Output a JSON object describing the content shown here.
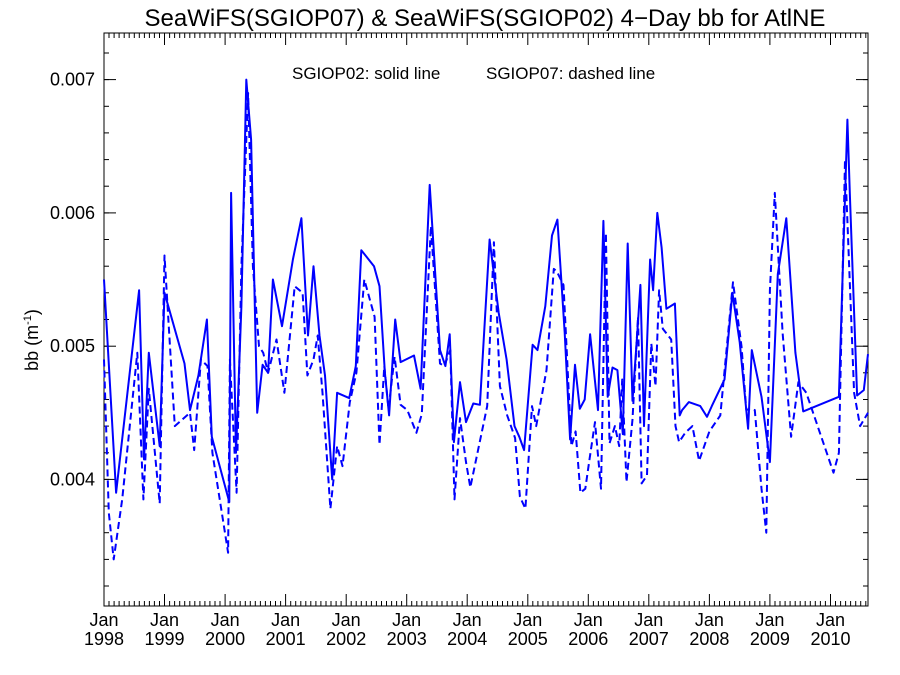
{
  "chart_data": {
    "type": "line",
    "title": "SeaWiFS(SGIOP07) & SeaWiFS(SGIOP02) 4−Day bb for AtlNE",
    "annotation_solid": "SGIOP02: solid line",
    "annotation_dashed": "SGIOP07: dashed line",
    "ylabel_main": "bb (m",
    "ylabel_sup": "-1",
    "ylabel_close": ")",
    "ylim": [
      0.00305,
      0.00735
    ],
    "yticks": [
      {
        "value": 0.004,
        "label": "0.004"
      },
      {
        "value": 0.005,
        "label": "0.005"
      },
      {
        "value": 0.006,
        "label": "0.006"
      },
      {
        "value": 0.007,
        "label": "0.007"
      }
    ],
    "xlim": [
      1998.0,
      2010.62
    ],
    "xticks": [
      {
        "value": 1998,
        "month": "Jan",
        "year": "1998"
      },
      {
        "value": 1999,
        "month": "Jan",
        "year": "1999"
      },
      {
        "value": 2000,
        "month": "Jan",
        "year": "2000"
      },
      {
        "value": 2001,
        "month": "Jan",
        "year": "2001"
      },
      {
        "value": 2002,
        "month": "Jan",
        "year": "2002"
      },
      {
        "value": 2003,
        "month": "Jan",
        "year": "2003"
      },
      {
        "value": 2004,
        "month": "Jan",
        "year": "2004"
      },
      {
        "value": 2005,
        "month": "Jan",
        "year": "2005"
      },
      {
        "value": 2006,
        "month": "Jan",
        "year": "2006"
      },
      {
        "value": 2007,
        "month": "Jan",
        "year": "2007"
      },
      {
        "value": 2008,
        "month": "Jan",
        "year": "2008"
      },
      {
        "value": 2009,
        "month": "Jan",
        "year": "2009"
      },
      {
        "value": 2010,
        "month": "Jan",
        "year": "2010"
      }
    ],
    "series": [
      {
        "style": "solid",
        "color": "#0000ff",
        "x": [
          1998.0,
          1998.2,
          1998.58,
          1998.66,
          1998.74,
          1998.92,
          1999.0,
          1999.33,
          1999.42,
          1999.56,
          1999.7,
          1999.78,
          2000.07,
          2000.1,
          2000.18,
          2000.27,
          2000.35,
          2000.43,
          2000.53,
          2000.62,
          2000.71,
          2000.79,
          2000.94,
          2001.12,
          2001.26,
          2001.37,
          2001.46,
          2001.56,
          2001.65,
          2001.77,
          2001.85,
          2002.05,
          2002.16,
          2002.25,
          2002.46,
          2002.55,
          2002.64,
          2002.71,
          2002.81,
          2002.9,
          2003.12,
          2003.23,
          2003.38,
          2003.55,
          2003.64,
          2003.71,
          2003.78,
          2003.88,
          2003.98,
          2004.1,
          2004.21,
          2004.37,
          2004.52,
          2004.65,
          2004.78,
          2004.86,
          2004.94,
          2005.08,
          2005.16,
          2005.29,
          2005.4,
          2005.49,
          2005.61,
          2005.7,
          2005.78,
          2005.86,
          2005.94,
          2006.03,
          2006.16,
          2006.25,
          2006.32,
          2006.4,
          2006.48,
          2006.57,
          2006.65,
          2006.73,
          2006.81,
          2006.86,
          2006.92,
          2007.02,
          2007.07,
          2007.14,
          2007.21,
          2007.29,
          2007.43,
          2007.51,
          2007.55,
          2007.66,
          2007.85,
          2007.96,
          2008.04,
          2008.25,
          2008.38,
          2008.5,
          2008.64,
          2008.7,
          2008.86,
          2009.0,
          2009.13,
          2009.27,
          2009.42,
          2009.55,
          2010.14,
          2010.28,
          2010.32,
          2010.44,
          2010.55,
          2010.62
        ],
        "y": [
          0.0055,
          0.0039,
          0.00542,
          0.00415,
          0.00495,
          0.00425,
          0.0054,
          0.00487,
          0.00452,
          0.00478,
          0.0052,
          0.00432,
          0.00383,
          0.00615,
          0.0042,
          0.0053,
          0.007,
          0.00655,
          0.0045,
          0.00486,
          0.0048,
          0.0055,
          0.00515,
          0.00565,
          0.00596,
          0.00508,
          0.0056,
          0.00508,
          0.00478,
          0.004,
          0.00465,
          0.00461,
          0.00485,
          0.00572,
          0.0056,
          0.00545,
          0.0048,
          0.00448,
          0.0052,
          0.00488,
          0.00493,
          0.00468,
          0.00621,
          0.00497,
          0.00485,
          0.00509,
          0.00428,
          0.00473,
          0.00443,
          0.00457,
          0.00456,
          0.0058,
          0.00525,
          0.0049,
          0.0044,
          0.00432,
          0.00422,
          0.00501,
          0.00497,
          0.0053,
          0.00583,
          0.00595,
          0.0051,
          0.0043,
          0.00486,
          0.00453,
          0.0046,
          0.00509,
          0.00452,
          0.00594,
          0.00462,
          0.00484,
          0.00482,
          0.00434,
          0.00577,
          0.00459,
          0.0051,
          0.00546,
          0.0044,
          0.00565,
          0.00542,
          0.006,
          0.00574,
          0.00528,
          0.00532,
          0.00448,
          0.00452,
          0.00458,
          0.00455,
          0.00447,
          0.00455,
          0.00475,
          0.0054,
          0.00503,
          0.00438,
          0.00497,
          0.00462,
          0.00413,
          0.00554,
          0.00596,
          0.00495,
          0.00451,
          0.00462,
          0.0067,
          0.00615,
          0.00463,
          0.00467,
          0.00494
        ]
      },
      {
        "style": "dashed",
        "color": "#0000ff",
        "x": [
          1998.0,
          1998.08,
          1998.16,
          1998.3,
          1998.55,
          1998.65,
          1998.74,
          1998.92,
          1999.0,
          1999.17,
          1999.42,
          1999.49,
          1999.6,
          1999.71,
          1999.79,
          2000.05,
          2000.08,
          2000.19,
          2000.27,
          2000.38,
          2000.46,
          2000.56,
          2000.63,
          2000.71,
          2000.85,
          2000.98,
          2001.15,
          2001.28,
          2001.36,
          2001.46,
          2001.53,
          2001.61,
          2001.74,
          2001.85,
          2001.94,
          2002.06,
          2002.17,
          2002.3,
          2002.47,
          2002.55,
          2002.63,
          2002.7,
          2002.8,
          2002.9,
          2003.01,
          2003.16,
          2003.25,
          2003.4,
          2003.55,
          2003.62,
          2003.72,
          2003.79,
          2003.88,
          2003.98,
          2004.05,
          2004.17,
          2004.33,
          2004.44,
          2004.54,
          2004.66,
          2004.79,
          2004.87,
          2004.96,
          2005.07,
          2005.14,
          2005.31,
          2005.43,
          2005.48,
          2005.59,
          2005.72,
          2005.79,
          2005.87,
          2005.95,
          2006.02,
          2006.11,
          2006.21,
          2006.29,
          2006.35,
          2006.44,
          2006.51,
          2006.56,
          2006.63,
          2006.73,
          2006.82,
          2006.88,
          2006.97,
          2007.04,
          2007.11,
          2007.17,
          2007.23,
          2007.37,
          2007.44,
          2007.5,
          2007.6,
          2007.72,
          2007.83,
          2008.0,
          2008.18,
          2008.39,
          2008.53,
          2008.61,
          2008.67,
          2008.75,
          2008.86,
          2008.94,
          2009.0,
          2009.08,
          2009.21,
          2009.35,
          2009.47,
          2009.6,
          2010.05,
          2010.14,
          2010.24,
          2010.39,
          2010.49,
          2010.62
        ],
        "y": [
          0.0049,
          0.00375,
          0.0034,
          0.00385,
          0.00495,
          0.00385,
          0.00468,
          0.00382,
          0.00568,
          0.0044,
          0.0045,
          0.00422,
          0.0049,
          0.00485,
          0.0042,
          0.00345,
          0.0049,
          0.0039,
          0.0056,
          0.0069,
          0.0056,
          0.005,
          0.00495,
          0.0048,
          0.00505,
          0.00465,
          0.00545,
          0.0054,
          0.00478,
          0.0049,
          0.00508,
          0.00465,
          0.00378,
          0.00425,
          0.0041,
          0.00458,
          0.0048,
          0.0055,
          0.00522,
          0.00426,
          0.00485,
          0.00453,
          0.00492,
          0.00456,
          0.00452,
          0.00435,
          0.00449,
          0.0059,
          0.00487,
          0.00485,
          0.00497,
          0.00385,
          0.00446,
          0.00413,
          0.00394,
          0.0042,
          0.00455,
          0.00578,
          0.0047,
          0.00448,
          0.00431,
          0.00387,
          0.00378,
          0.00455,
          0.0044,
          0.00482,
          0.00558,
          0.00556,
          0.00546,
          0.00425,
          0.00436,
          0.0039,
          0.00393,
          0.00415,
          0.00443,
          0.00393,
          0.00585,
          0.00427,
          0.0044,
          0.00425,
          0.00475,
          0.00398,
          0.00445,
          0.00522,
          0.00397,
          0.00403,
          0.00502,
          0.0047,
          0.00542,
          0.00513,
          0.00505,
          0.0044,
          0.00428,
          0.00435,
          0.0044,
          0.00414,
          0.00436,
          0.00448,
          0.00548,
          0.005,
          0.00452,
          0.00453,
          0.00452,
          0.00393,
          0.0036,
          0.00542,
          0.00615,
          0.0051,
          0.00432,
          0.00473,
          0.00465,
          0.00405,
          0.0042,
          0.0064,
          0.00465,
          0.0044,
          0.0045
        ]
      }
    ]
  }
}
